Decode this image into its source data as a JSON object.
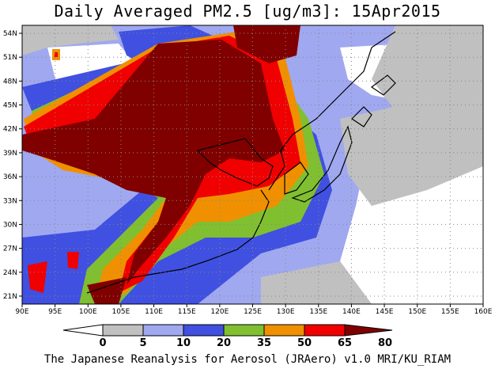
{
  "title": "Daily Averaged PM2.5 [ug/m3]: 15Apr2015",
  "footer": "The Japanese Reanalysis for Aerosol (JRAero) v1.0 MRI/KU_RIAM",
  "map": {
    "lon_range": [
      90,
      160
    ],
    "lat_range": [
      20,
      55
    ],
    "lon_ticks": [
      "90E",
      "95E",
      "100E",
      "105E",
      "110E",
      "115E",
      "120E",
      "125E",
      "130E",
      "135E",
      "140E",
      "145E",
      "150E",
      "155E",
      "160E"
    ],
    "lat_ticks": [
      "21N",
      "24N",
      "27N",
      "30N",
      "33N",
      "36N",
      "39N",
      "42N",
      "45N",
      "48N",
      "51N",
      "54N"
    ],
    "grid": "dotted",
    "region": "East Asia"
  },
  "legend": {
    "thresholds": [
      "0",
      "5",
      "10",
      "20",
      "35",
      "50",
      "65",
      "80"
    ],
    "colors": [
      "#ffffff",
      "#c0c0c0",
      "#a0a8f0",
      "#4050e0",
      "#80c030",
      "#f09000",
      "#f00000",
      "#800000"
    ],
    "below_color": "#ffffff",
    "above_color": "#800000"
  },
  "colors": {
    "ocean_low": "#ffffff",
    "level_5": "#c0c0c0",
    "level_10": "#a0a8f0",
    "level_20": "#4050e0",
    "level_35": "#80c030",
    "level_50": "#f09000",
    "level_65": "#f00000",
    "level_80": "#800000"
  }
}
